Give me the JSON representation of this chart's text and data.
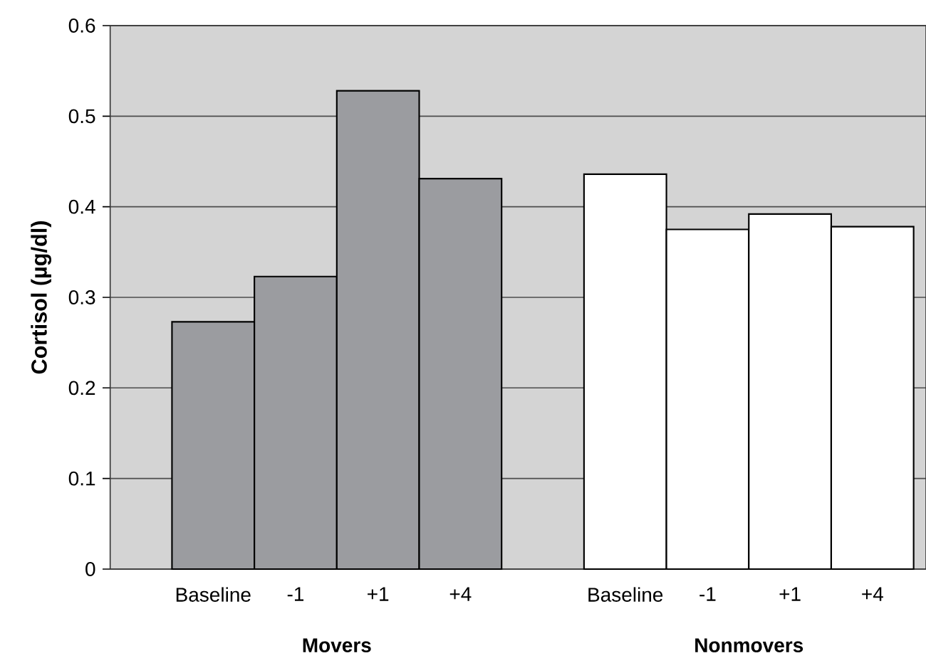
{
  "chart_data": {
    "type": "bar",
    "ylabel": "Cortisol (µg/dl)",
    "categories": [
      "Baseline",
      "-1",
      "+1",
      "+4",
      null,
      "Baseline",
      "-1",
      "+1",
      "+4"
    ],
    "values": [
      0.273,
      0.323,
      0.528,
      0.431,
      null,
      0.436,
      0.375,
      0.392,
      0.378
    ],
    "colors": [
      "#9b9ca0",
      "#9b9ca0",
      "#9b9ca0",
      "#9b9ca0",
      null,
      "#ffffff",
      "#ffffff",
      "#ffffff",
      "#ffffff"
    ],
    "ylim": [
      0,
      0.6
    ],
    "yticks": [
      0,
      0.1,
      0.2,
      0.3,
      0.4,
      0.5,
      0.6
    ],
    "grid": "y",
    "annotations": [
      "Movers",
      "Nonmovers"
    ]
  }
}
